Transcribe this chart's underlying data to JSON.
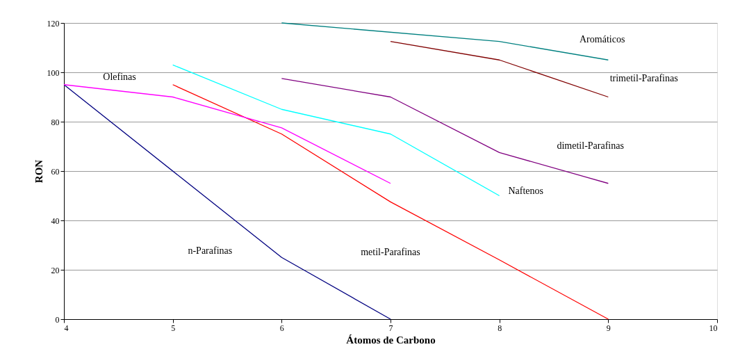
{
  "chart_data": {
    "type": "line",
    "xlabel": "Átomos de Carbono",
    "ylabel": "RON",
    "xlim": [
      4,
      10
    ],
    "xticks": [
      4,
      5,
      6,
      7,
      8,
      9,
      10
    ],
    "ylim": [
      0,
      120
    ],
    "yticks": [
      0,
      20,
      40,
      60,
      80,
      100,
      120
    ],
    "grid": "y",
    "legend": false,
    "marker": "none",
    "line_style": "solid",
    "series": [
      {
        "name": "n-Parafinas",
        "color": "#000080",
        "x": [
          4,
          6,
          7
        ],
        "values": [
          95,
          25,
          0
        ]
      },
      {
        "name": "metil-Parafinas",
        "color": "#ff0000",
        "x": [
          5,
          6,
          7,
          8,
          9
        ],
        "values": [
          95,
          75,
          47.5,
          24,
          0
        ]
      },
      {
        "name": "Olefinas",
        "color": "#ff00ff",
        "x": [
          4,
          5,
          6,
          7
        ],
        "values": [
          95,
          90,
          77.5,
          55
        ]
      },
      {
        "name": "Naftenos",
        "color": "#00ffff",
        "x": [
          5,
          6,
          7,
          8
        ],
        "values": [
          103,
          85,
          75,
          50
        ]
      },
      {
        "name": "dimetil-Parafinas",
        "color": "#800080",
        "x": [
          6,
          7,
          8,
          9
        ],
        "values": [
          97.5,
          90,
          67.5,
          55
        ]
      },
      {
        "name": "trimetil-Parafinas",
        "color": "#800000",
        "x": [
          7,
          8,
          9
        ],
        "values": [
          112.5,
          105,
          90
        ]
      },
      {
        "name": "Aromáticos",
        "color": "#008080",
        "x": [
          6,
          8,
          9
        ],
        "values": [
          120,
          112.5,
          105
        ]
      }
    ]
  }
}
